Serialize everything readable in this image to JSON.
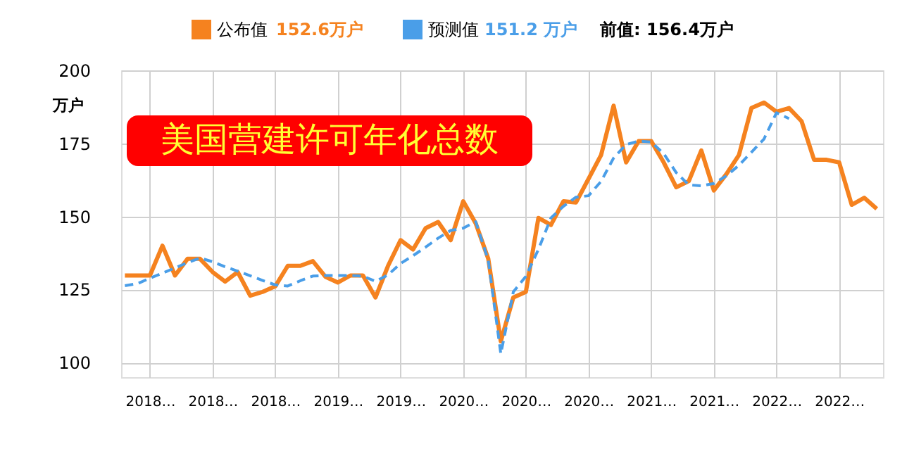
{
  "chart_data": {
    "type": "line",
    "title": "美国营建许可年化总数",
    "ylabel": "万户",
    "categories": [
      null,
      null,
      "2018…",
      null,
      null,
      null,
      null,
      "2018…",
      null,
      null,
      null,
      null,
      "2018…",
      null,
      null,
      null,
      null,
      "2019…",
      null,
      null,
      null,
      null,
      "2019…",
      null,
      null,
      null,
      null,
      "2020…",
      null,
      null,
      null,
      null,
      "2020…",
      null,
      null,
      null,
      null,
      "2020…",
      null,
      null,
      null,
      null,
      "2021…",
      null,
      null,
      null,
      null,
      "2021…",
      null,
      null,
      null,
      null,
      "2022…",
      null,
      null,
      null,
      null,
      "2022…",
      null,
      null,
      null
    ],
    "series": [
      {
        "name": "公布值",
        "color": "#f5821f",
        "line_style": "solid",
        "values": [
          129.8,
          129.8,
          129.8,
          140.0,
          129.8,
          135.5,
          135.5,
          131.0,
          127.7,
          131.0,
          122.9,
          124.2,
          126.1,
          133.1,
          133.1,
          134.7,
          129.4,
          127.4,
          129.8,
          129.8,
          122.3,
          133.1,
          141.9,
          138.7,
          146.0,
          148.1,
          141.9,
          155.2,
          147.6,
          135.5,
          107.3,
          122.3,
          124.2,
          149.5,
          147.1,
          155.2,
          154.8,
          162.9,
          171.0,
          187.9,
          168.5,
          175.8,
          175.8,
          168.5,
          160.0,
          162.1,
          172.6,
          158.9,
          164.5,
          171.0,
          187.1,
          189.0,
          185.8,
          187.1,
          182.6,
          169.4,
          169.4,
          168.5,
          154.0,
          156.4,
          152.6
        ]
      },
      {
        "name": "预测值",
        "color": "#4a9ee8",
        "line_style": "dashed",
        "values": [
          126.3,
          127.0,
          128.9,
          130.6,
          132.4,
          134.2,
          135.8,
          134.5,
          132.8,
          131.3,
          129.7,
          128.1,
          126.6,
          126.2,
          128.0,
          129.6,
          129.8,
          129.8,
          129.8,
          129.6,
          127.8,
          130.0,
          133.9,
          136.6,
          139.5,
          142.6,
          145.2,
          146.0,
          148.2,
          135.0,
          103.0,
          124.2,
          129.5,
          138.7,
          149.5,
          153.5,
          156.6,
          157.1,
          162.0,
          170.0,
          174.6,
          175.8,
          175.5,
          171.5,
          165.0,
          160.8,
          160.5,
          161.3,
          163.9,
          167.5,
          172.0,
          176.5,
          185.5,
          183.5,
          null,
          null,
          null,
          null,
          null,
          null,
          null
        ]
      }
    ],
    "ylim": [
      95,
      200
    ],
    "yticks": [
      100,
      125,
      150,
      175,
      200
    ],
    "grid": true,
    "legend": "top",
    "annotations": [
      "152.6万户",
      "151.2 万户",
      "前值: 156.4万户"
    ]
  }
}
